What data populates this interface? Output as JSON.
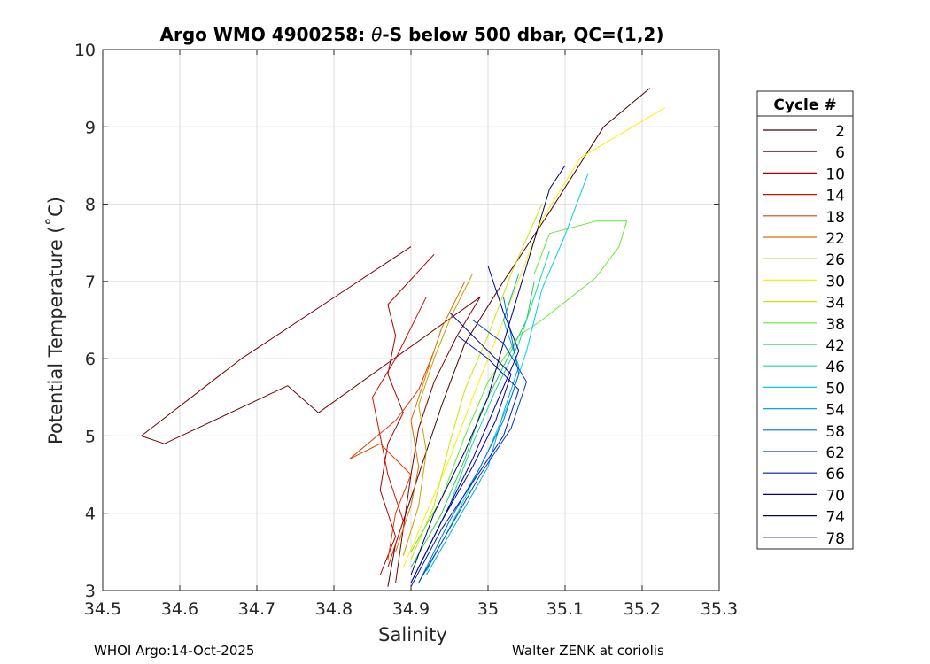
{
  "chart_data": {
    "type": "line",
    "title": "Argo WMO 4900258: θ-S below 500 dbar,  QC=(1,2)",
    "title_parts": {
      "prefix": "Argo WMO 4900258: ",
      "theta": "θ",
      "suffix": "-S below 500 dbar,  QC=(1,2)"
    },
    "xlabel": "Salinity",
    "ylabel": "Potential Temperature (˚C)",
    "xlim": [
      34.5,
      35.3
    ],
    "ylim": [
      3,
      10
    ],
    "xticks": [
      34.5,
      34.6,
      34.7,
      34.8,
      34.9,
      35,
      35.1,
      35.2,
      35.3
    ],
    "xtick_labels": [
      "34.5",
      "34.6",
      "34.7",
      "34.8",
      "34.9",
      "35",
      "35.1",
      "35.2",
      "35.3"
    ],
    "yticks": [
      3,
      4,
      5,
      6,
      7,
      8,
      9,
      10
    ],
    "ytick_labels": [
      "3",
      "4",
      "5",
      "6",
      "7",
      "8",
      "9",
      "10"
    ],
    "grid": true,
    "legend_title": "Cycle #",
    "legend_position": "right-outside",
    "series": [
      {
        "name": "2",
        "color": "#4a0000",
        "points": [
          [
            34.87,
            3.05
          ],
          [
            34.88,
            3.6
          ],
          [
            34.9,
            4.2
          ],
          [
            34.92,
            4.8
          ],
          [
            34.94,
            5.4
          ],
          [
            34.97,
            6.2
          ],
          [
            35.02,
            7.0
          ],
          [
            35.08,
            7.9
          ],
          [
            35.15,
            9.0
          ],
          [
            35.21,
            9.5
          ]
        ]
      },
      {
        "name": "6",
        "color": "#7a0000",
        "points": [
          [
            34.88,
            3.1
          ],
          [
            34.89,
            3.8
          ],
          [
            34.9,
            4.5
          ],
          [
            34.91,
            5.1
          ],
          [
            34.93,
            5.7
          ],
          [
            34.96,
            6.3
          ],
          [
            34.99,
            6.8
          ],
          [
            34.78,
            5.3
          ],
          [
            34.74,
            5.65
          ],
          [
            34.58,
            4.9
          ],
          [
            34.55,
            5.0
          ],
          [
            34.68,
            6.0
          ],
          [
            34.9,
            7.45
          ]
        ]
      },
      {
        "name": "10",
        "color": "#a80000",
        "points": [
          [
            34.86,
            3.2
          ],
          [
            34.88,
            3.7
          ],
          [
            34.86,
            4.3
          ],
          [
            34.87,
            4.9
          ],
          [
            34.89,
            5.3
          ],
          [
            34.87,
            5.8
          ],
          [
            34.88,
            6.3
          ],
          [
            34.87,
            6.7
          ],
          [
            34.93,
            7.35
          ]
        ]
      },
      {
        "name": "14",
        "color": "#cc1000",
        "points": [
          [
            34.87,
            3.3
          ],
          [
            34.89,
            3.9
          ],
          [
            34.87,
            4.5
          ],
          [
            34.86,
            5.0
          ],
          [
            34.85,
            5.5
          ],
          [
            34.88,
            6.0
          ],
          [
            34.9,
            6.4
          ],
          [
            34.92,
            6.8
          ]
        ]
      },
      {
        "name": "18",
        "color": "#e43800",
        "points": [
          [
            34.87,
            3.4
          ],
          [
            34.88,
            4.0
          ],
          [
            34.9,
            4.5
          ],
          [
            34.86,
            4.9
          ],
          [
            34.82,
            4.7
          ],
          [
            34.88,
            5.2
          ],
          [
            34.91,
            5.6
          ],
          [
            34.93,
            6.1
          ]
        ]
      },
      {
        "name": "22",
        "color": "#d87000",
        "points": [
          [
            34.88,
            3.5
          ],
          [
            34.9,
            4.1
          ],
          [
            34.91,
            4.6
          ],
          [
            34.9,
            5.2
          ],
          [
            34.92,
            5.8
          ],
          [
            34.94,
            6.4
          ],
          [
            34.97,
            7.0
          ]
        ]
      },
      {
        "name": "26",
        "color": "#c8a000",
        "points": [
          [
            34.89,
            3.45
          ],
          [
            34.91,
            4.1
          ],
          [
            34.92,
            4.8
          ],
          [
            34.91,
            5.4
          ],
          [
            34.93,
            6.0
          ],
          [
            34.95,
            6.5
          ],
          [
            34.98,
            7.1
          ]
        ]
      },
      {
        "name": "30",
        "color": "#ffee00",
        "points": [
          [
            34.89,
            3.3
          ],
          [
            34.92,
            4.0
          ],
          [
            34.95,
            4.7
          ],
          [
            34.98,
            5.5
          ],
          [
            35.02,
            6.5
          ],
          [
            35.07,
            7.8
          ],
          [
            35.12,
            8.6
          ],
          [
            35.23,
            9.25
          ]
        ]
      },
      {
        "name": "34",
        "color": "#c8e800",
        "points": [
          [
            34.9,
            3.4
          ],
          [
            34.93,
            4.1
          ],
          [
            34.95,
            4.9
          ],
          [
            34.97,
            5.6
          ],
          [
            35.0,
            6.3
          ],
          [
            35.03,
            7.1
          ],
          [
            35.07,
            8.0
          ]
        ]
      },
      {
        "name": "38",
        "color": "#66e833",
        "points": [
          [
            34.9,
            3.5
          ],
          [
            34.94,
            4.2
          ],
          [
            34.97,
            5.0
          ],
          [
            35.0,
            5.7
          ],
          [
            35.04,
            6.3
          ],
          [
            35.07,
            6.5
          ],
          [
            35.14,
            7.05
          ],
          [
            35.17,
            7.45
          ],
          [
            35.18,
            7.78
          ],
          [
            35.14,
            7.78
          ],
          [
            35.08,
            7.62
          ],
          [
            35.06,
            7.1
          ]
        ]
      },
      {
        "name": "42",
        "color": "#2ecc55",
        "points": [
          [
            34.9,
            3.3
          ],
          [
            34.94,
            4.0
          ],
          [
            34.97,
            4.7
          ],
          [
            34.99,
            5.3
          ],
          [
            35.02,
            5.9
          ],
          [
            35.05,
            6.5
          ],
          [
            35.06,
            7.0
          ]
        ]
      },
      {
        "name": "46",
        "color": "#1ad8a0",
        "points": [
          [
            34.91,
            3.3
          ],
          [
            34.95,
            4.1
          ],
          [
            34.98,
            4.9
          ],
          [
            35.01,
            5.6
          ],
          [
            35.04,
            6.2
          ],
          [
            35.06,
            6.8
          ],
          [
            35.08,
            7.4
          ]
        ]
      },
      {
        "name": "50",
        "color": "#00d0e0",
        "points": [
          [
            34.92,
            3.25
          ],
          [
            34.96,
            4.0
          ],
          [
            35.0,
            4.8
          ],
          [
            35.03,
            5.5
          ],
          [
            35.05,
            6.1
          ],
          [
            35.07,
            6.9
          ],
          [
            35.1,
            7.6
          ],
          [
            35.13,
            8.4
          ]
        ]
      },
      {
        "name": "54",
        "color": "#00a8e8",
        "points": [
          [
            34.92,
            3.2
          ],
          [
            34.96,
            3.9
          ],
          [
            35.0,
            4.6
          ],
          [
            35.02,
            5.3
          ],
          [
            35.04,
            5.9
          ],
          [
            35.02,
            6.5
          ],
          [
            35.04,
            7.1
          ]
        ]
      },
      {
        "name": "58",
        "color": "#0070d8",
        "points": [
          [
            34.91,
            3.1
          ],
          [
            34.95,
            3.9
          ],
          [
            34.99,
            4.6
          ],
          [
            35.02,
            5.2
          ],
          [
            35.04,
            5.8
          ],
          [
            35.03,
            6.3
          ],
          [
            35.02,
            6.8
          ]
        ]
      },
      {
        "name": "62",
        "color": "#0040c8",
        "points": [
          [
            34.91,
            3.1
          ],
          [
            34.95,
            3.8
          ],
          [
            34.99,
            4.5
          ],
          [
            35.03,
            5.1
          ],
          [
            35.05,
            5.7
          ],
          [
            35.02,
            6.2
          ],
          [
            34.98,
            6.5
          ]
        ]
      },
      {
        "name": "66",
        "color": "#0018b8",
        "points": [
          [
            34.9,
            3.05
          ],
          [
            34.94,
            3.8
          ],
          [
            34.98,
            4.4
          ],
          [
            35.02,
            5.0
          ],
          [
            35.04,
            5.6
          ],
          [
            35.0,
            6.0
          ],
          [
            34.96,
            6.3
          ]
        ]
      },
      {
        "name": "70",
        "color": "#00008c",
        "points": [
          [
            34.9,
            3.1
          ],
          [
            34.94,
            3.9
          ],
          [
            34.98,
            4.6
          ],
          [
            35.01,
            5.2
          ],
          [
            35.03,
            5.8
          ],
          [
            34.99,
            6.2
          ],
          [
            34.95,
            6.6
          ]
        ]
      },
      {
        "name": "74",
        "color": "#000060",
        "points": [
          [
            34.9,
            3.2
          ],
          [
            34.93,
            4.0
          ],
          [
            34.97,
            4.8
          ],
          [
            35.0,
            5.5
          ],
          [
            35.02,
            6.2
          ],
          [
            35.05,
            7.2
          ],
          [
            35.08,
            8.2
          ],
          [
            35.1,
            8.5
          ]
        ]
      },
      {
        "name": "78",
        "color": "#0000a0",
        "points": [
          [
            34.9,
            3.1
          ],
          [
            34.94,
            3.9
          ],
          [
            34.98,
            4.7
          ],
          [
            35.01,
            5.4
          ],
          [
            35.04,
            6.1
          ],
          [
            35.02,
            6.6
          ],
          [
            35.0,
            7.2
          ]
        ]
      }
    ]
  },
  "footer": {
    "left": "WHOI Argo:14-Oct-2025",
    "right": "Walter ZENK at coriolis"
  }
}
